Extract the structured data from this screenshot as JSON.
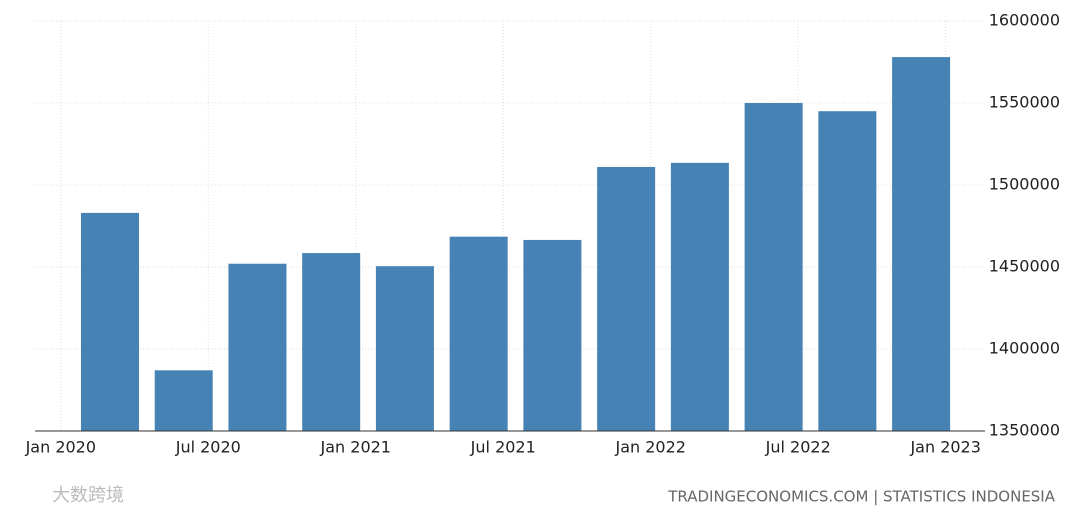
{
  "chart_data": {
    "type": "bar",
    "x": [
      2,
      5,
      8,
      11,
      14,
      17,
      20,
      23,
      26,
      29,
      32,
      35
    ],
    "values": [
      1483000,
      1387000,
      1452000,
      1458500,
      1450500,
      1468500,
      1466500,
      1511000,
      1513500,
      1550000,
      1545000,
      1578000
    ],
    "color": "#4682b4",
    "xlim": [
      -1.05,
      37.6
    ],
    "xticks": [
      {
        "value": 0,
        "label": "Jan 2020"
      },
      {
        "value": 6,
        "label": "Jul 2020"
      },
      {
        "value": 12,
        "label": "Jan 2021"
      },
      {
        "value": 18,
        "label": "Jul 2021"
      },
      {
        "value": 24,
        "label": "Jan 2022"
      },
      {
        "value": 30,
        "label": "Jul 2022"
      },
      {
        "value": 36,
        "label": "Jan 2023"
      }
    ],
    "ylim": [
      1350000,
      1600000
    ],
    "yticks": [
      1350000,
      1400000,
      1450000,
      1500000,
      1550000,
      1600000
    ],
    "grid": true,
    "source": "TRADINGECONOMICS.COM | STATISTICS INDONESIA",
    "watermark": "大数跨境"
  }
}
